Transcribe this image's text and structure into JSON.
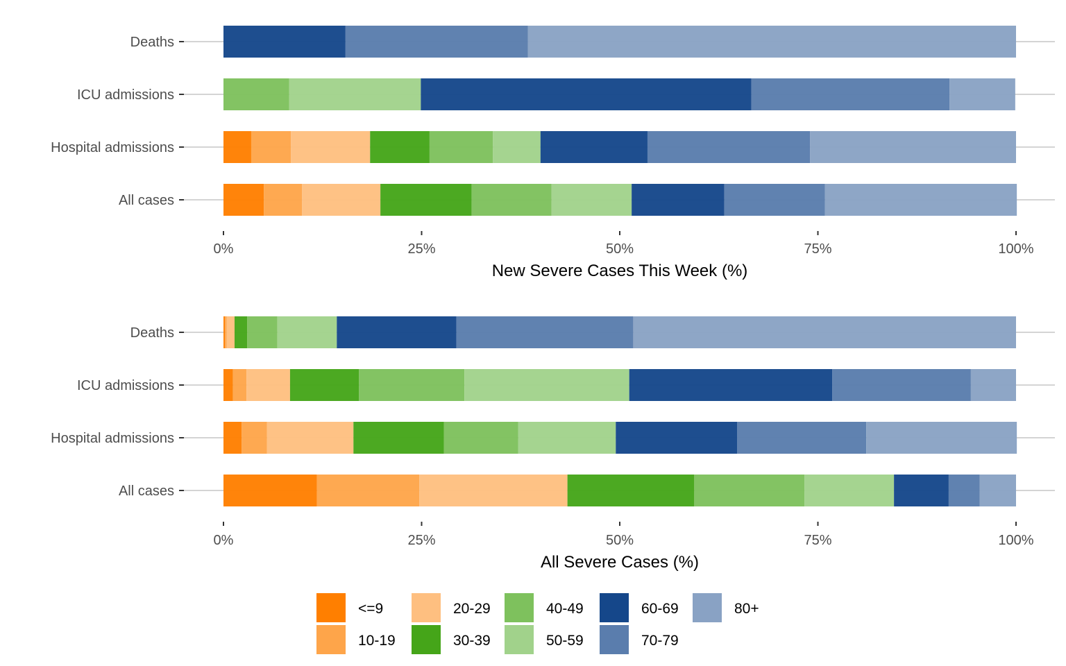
{
  "chart_data": [
    {
      "type": "bar",
      "orientation": "horizontal",
      "stacked": "percent",
      "title": "",
      "xlabel": "New Severe Cases This Week (%)",
      "ylabel": "",
      "xlim": [
        0,
        100
      ],
      "x_ticks": [
        "0%",
        "25%",
        "50%",
        "75%",
        "100%"
      ],
      "x_tick_values": [
        0,
        25,
        50,
        75,
        100
      ],
      "grid": "horizontal major lines at categories",
      "categories": [
        "Deaths",
        "ICU admissions",
        "Hospital admissions",
        "All cases"
      ],
      "series": [
        {
          "name": "<=9",
          "values": [
            0,
            0,
            3.5,
            5.1
          ]
        },
        {
          "name": "10-19",
          "values": [
            0,
            0,
            5.0,
            4.8
          ]
        },
        {
          "name": "20-29",
          "values": [
            0,
            0,
            10.0,
            9.9
          ]
        },
        {
          "name": "30-39",
          "values": [
            0,
            0,
            7.5,
            11.5
          ]
        },
        {
          "name": "40-49",
          "values": [
            0,
            8.3,
            8.0,
            10.1
          ]
        },
        {
          "name": "50-59",
          "values": [
            0,
            16.6,
            6.0,
            10.1
          ]
        },
        {
          "name": "60-69",
          "values": [
            15.4,
            41.7,
            13.5,
            11.7
          ]
        },
        {
          "name": "70-79",
          "values": [
            23.0,
            25.0,
            20.5,
            12.7
          ]
        },
        {
          "name": "80+",
          "values": [
            61.6,
            8.3,
            26.0,
            24.2
          ]
        }
      ]
    },
    {
      "type": "bar",
      "orientation": "horizontal",
      "stacked": "percent",
      "title": "",
      "xlabel": "All Severe Cases (%)",
      "ylabel": "",
      "xlim": [
        0,
        100
      ],
      "x_ticks": [
        "0%",
        "25%",
        "50%",
        "75%",
        "100%"
      ],
      "x_tick_values": [
        0,
        25,
        50,
        75,
        100
      ],
      "grid": "horizontal major lines at categories",
      "categories": [
        "Deaths",
        "ICU admissions",
        "Hospital admissions",
        "All cases"
      ],
      "series": [
        {
          "name": "<=9",
          "values": [
            0.2,
            1.2,
            2.3,
            11.8
          ]
        },
        {
          "name": "10-19",
          "values": [
            0.2,
            1.7,
            3.2,
            12.9
          ]
        },
        {
          "name": "20-29",
          "values": [
            1.0,
            5.5,
            10.9,
            18.7
          ]
        },
        {
          "name": "30-39",
          "values": [
            1.6,
            8.7,
            11.4,
            16.0
          ]
        },
        {
          "name": "40-49",
          "values": [
            3.8,
            13.3,
            9.4,
            13.9
          ]
        },
        {
          "name": "50-59",
          "values": [
            7.5,
            20.8,
            12.3,
            11.3
          ]
        },
        {
          "name": "60-69",
          "values": [
            15.1,
            25.6,
            15.3,
            6.9
          ]
        },
        {
          "name": "70-79",
          "values": [
            22.3,
            17.5,
            16.3,
            3.9
          ]
        },
        {
          "name": "80+",
          "values": [
            48.3,
            5.7,
            19.0,
            4.6
          ]
        }
      ]
    }
  ],
  "legend": {
    "placement": "bottom",
    "items": [
      {
        "label": "<=9",
        "color": "#FF7F00"
      },
      {
        "label": "10-19",
        "color": "#FEA54A"
      },
      {
        "label": "20-29",
        "color": "#FEBF80"
      },
      {
        "label": "30-39",
        "color": "#45A519"
      },
      {
        "label": "40-49",
        "color": "#7EC15D"
      },
      {
        "label": "50-59",
        "color": "#A1D28B"
      },
      {
        "label": "60-69",
        "color": "#15478A"
      },
      {
        "label": "70-79",
        "color": "#5A7DAD"
      },
      {
        "label": "80+",
        "color": "#89A2C4"
      }
    ]
  }
}
